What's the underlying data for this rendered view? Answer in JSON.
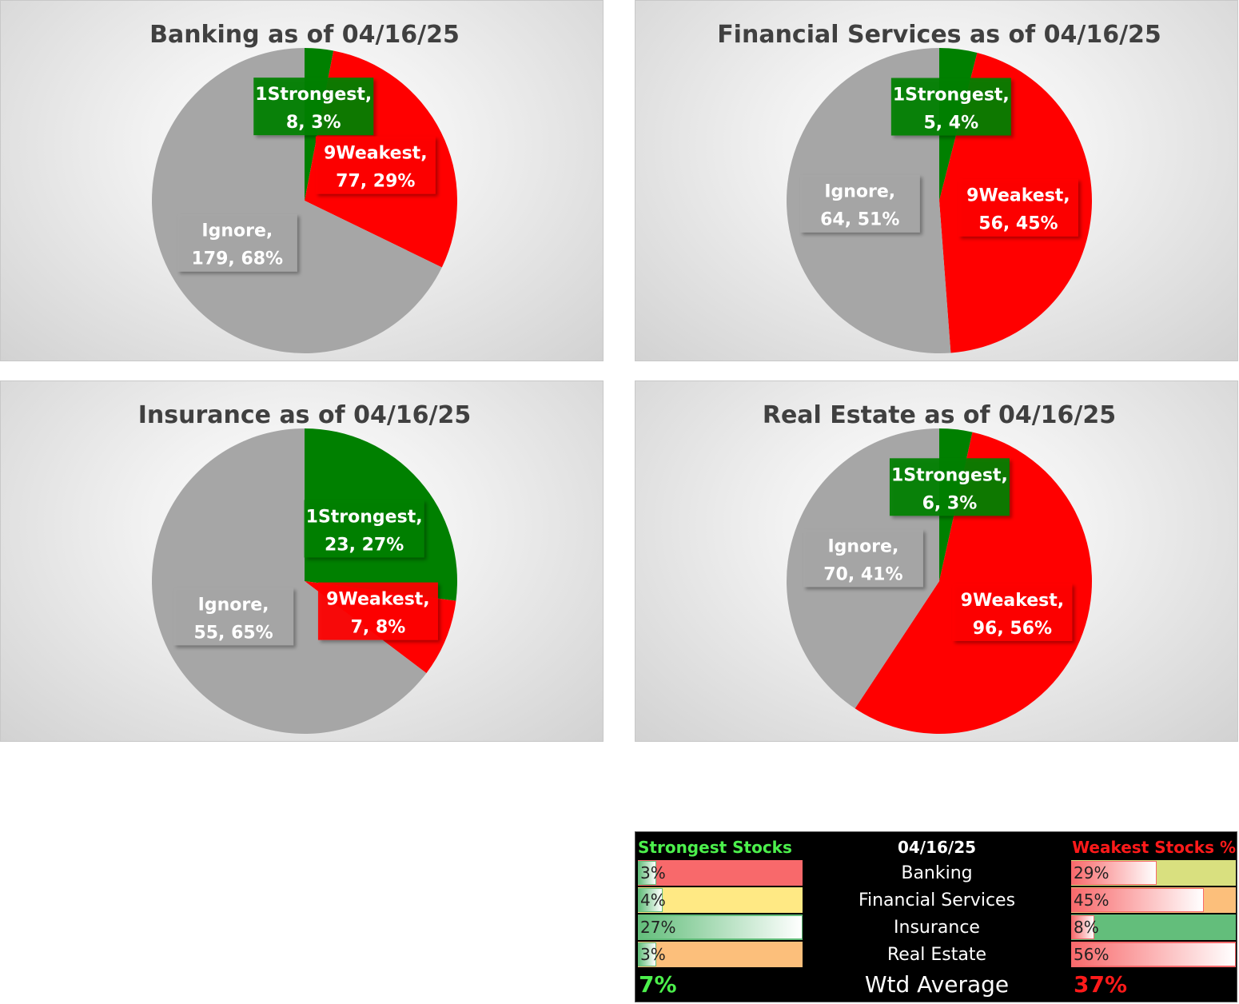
{
  "chart_data": [
    {
      "type": "pie",
      "title": "Banking as of 04/16/25",
      "slices": [
        {
          "name": "1Strongest",
          "value": 8,
          "percent": 3,
          "color": "#008000",
          "label": "1Strongest,|8, 3%"
        },
        {
          "name": "9Weakest",
          "value": 77,
          "percent": 29,
          "color": "#ff0000",
          "label": "9Weakest,|77, 29%"
        },
        {
          "name": "Ignore",
          "value": 179,
          "percent": 68,
          "color": "#a6a6a6",
          "label": "Ignore,|179, 68%"
        }
      ]
    },
    {
      "type": "pie",
      "title": "Financial Services as of 04/16/25",
      "slices": [
        {
          "name": "1Strongest",
          "value": 5,
          "percent": 4,
          "color": "#008000",
          "label": "1Strongest,|5, 4%"
        },
        {
          "name": "9Weakest",
          "value": 56,
          "percent": 45,
          "color": "#ff0000",
          "label": "9Weakest,|56, 45%"
        },
        {
          "name": "Ignore",
          "value": 64,
          "percent": 51,
          "color": "#a6a6a6",
          "label": "Ignore,|64, 51%"
        }
      ]
    },
    {
      "type": "pie",
      "title": "Insurance as of 04/16/25",
      "slices": [
        {
          "name": "1Strongest",
          "value": 23,
          "percent": 27,
          "color": "#008000",
          "label": "1Strongest,|23, 27%"
        },
        {
          "name": "9Weakest",
          "value": 7,
          "percent": 8,
          "color": "#ff0000",
          "label": "9Weakest,|7, 8%"
        },
        {
          "name": "Ignore",
          "value": 55,
          "percent": 65,
          "color": "#a6a6a6",
          "label": "Ignore,|55, 65%"
        }
      ]
    },
    {
      "type": "pie",
      "title": "Real Estate as of 04/16/25",
      "slices": [
        {
          "name": "1Strongest",
          "value": 6,
          "percent": 3,
          "color": "#008000",
          "label": "1Strongest,|6, 3%"
        },
        {
          "name": "9Weakest",
          "value": 96,
          "percent": 56,
          "color": "#ff0000",
          "label": "9Weakest,|96, 56%"
        },
        {
          "name": "Ignore",
          "value": 70,
          "percent": 41,
          "color": "#a6a6a6",
          "label": "Ignore,|70, 41%"
        }
      ]
    },
    {
      "type": "table",
      "headers": {
        "strongest": "Strongest Stocks %",
        "date": "04/16/25",
        "weakest": "Weakest Stocks %"
      },
      "rows": [
        {
          "sector": "Banking",
          "strongest": "3%",
          "strongest_value": 3,
          "weakest": "29%",
          "weakest_value": 29,
          "strongest_bg": "#f8696b",
          "weakest_bg": "#d9e07f"
        },
        {
          "sector": "Financial Services",
          "strongest": "4%",
          "strongest_value": 4,
          "weakest": "45%",
          "weakest_value": 45,
          "strongest_bg": "#ffe984",
          "weakest_bg": "#fcbf7b"
        },
        {
          "sector": "Insurance",
          "strongest": "27%",
          "strongest_value": 27,
          "weakest": "8%",
          "weakest_value": 8,
          "strongest_bg": "#63be7b",
          "weakest_bg": "#63be7b"
        },
        {
          "sector": "Real Estate",
          "strongest": "3%",
          "strongest_value": 3,
          "weakest": "56%",
          "weakest_value": 56,
          "strongest_bg": "#fcbf7b",
          "weakest_bg": "#f8696b"
        }
      ],
      "footer": {
        "strongest": "7%",
        "label": "Wtd Average",
        "weakest": "37%"
      }
    }
  ]
}
